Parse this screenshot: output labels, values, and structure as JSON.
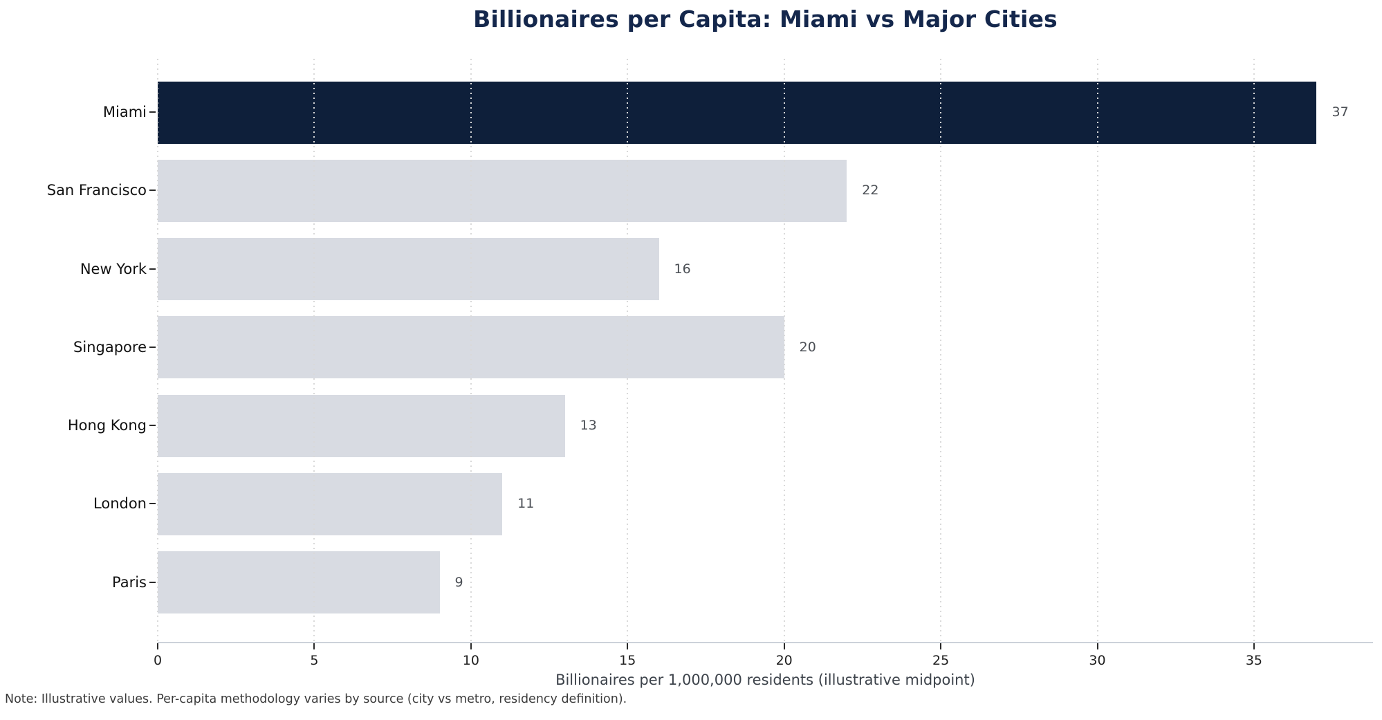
{
  "chart_data": {
    "type": "bar",
    "orientation": "horizontal",
    "title": "Billionaires per Capita: Miami vs Major Cities",
    "xlabel": "Billionaires per 1,000,000 residents (illustrative midpoint)",
    "note": "Note: Illustrative values. Per-capita methodology varies by source (city vs metro, residency definition).",
    "categories": [
      "Miami",
      "San Francisco",
      "New York",
      "Singapore",
      "Hong Kong",
      "London",
      "Paris"
    ],
    "values": [
      37,
      22,
      16,
      20,
      13,
      11,
      9
    ],
    "highlight_category": "Miami",
    "xlim": [
      0,
      38.8
    ],
    "xticks": [
      0,
      5,
      10,
      15,
      20,
      25,
      30,
      35
    ],
    "grid": "vertical-dotted-over-bars",
    "legend": "none",
    "colors": {
      "highlight_bar": "#0e1f3a",
      "default_bar": "#d8dbe2",
      "title": "#14274c",
      "value_label": "#4b4f55",
      "category_label": "#111111",
      "tick_label": "#1f1f1f",
      "xlabel_text": "#3d434b",
      "note_text": "#3b3b3b",
      "axis_spine": "#ccd2da",
      "gridline": "#d9d9d9",
      "background": "#ffffff"
    }
  }
}
